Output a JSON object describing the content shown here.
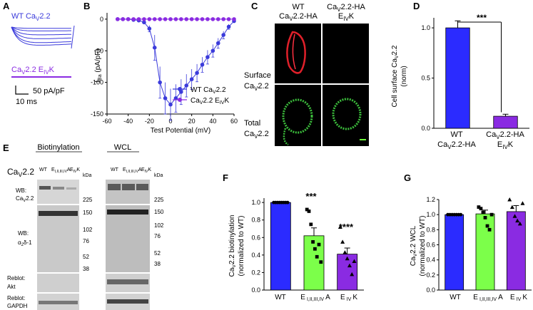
{
  "panels": {
    "A": {
      "letter": "A",
      "wt_label": "WT Ca",
      "wt_sub": "V",
      "wt_suffix": "2.2",
      "mut_label": "Ca",
      "mut_sub": "V",
      "mut_mid": "2.2 E",
      "mut_sub2": "IV",
      "mut_suffix": "K",
      "scale_y": "50 pA/pF",
      "scale_x": "10 ms",
      "colors": {
        "wt": "#3b3bdb",
        "mut": "#8a2be2"
      }
    },
    "B": {
      "letter": "B",
      "ylabel_main": "I",
      "ylabel_sub": "Ba",
      "ylabel_rest": " (pA/pF)",
      "xlabel": "Test Potential (mV)",
      "legend": [
        {
          "label": "WT Ca",
          "sub": "V",
          "rest": "2.2",
          "color": "#3b3bdb"
        },
        {
          "label": "Ca",
          "sub": "V",
          "rest": "2.2 E",
          "sub2": "IV",
          "rest2": "K",
          "color": "#8a2be2"
        }
      ]
    },
    "C": {
      "letter": "C",
      "col1_line1": "WT",
      "col1_line2": "Ca",
      "col1_sub": "V",
      "col1_rest": "2.2-HA",
      "col2_line1": "Ca",
      "col2_sub": "V",
      "col2_rest": "2.2-HA",
      "col2_line2": "E",
      "col2_sub2": "IV",
      "col2_rest2": "K",
      "row1_line1": "Surface",
      "row1_line2": "Ca",
      "row1_sub": "V",
      "row1_rest": "2.2",
      "row2_line1": "Total",
      "row2_line2": "Ca",
      "row2_sub": "V",
      "row2_rest": "2.2"
    },
    "D": {
      "letter": "D",
      "ylabel_line1": "Cell surface Ca",
      "ylabel_sub": "V",
      "ylabel_rest": "2.2",
      "ylabel_line2": "(norm)",
      "significance": "***",
      "cat1_line1": "WT",
      "cat1_line2": "Ca",
      "cat1_sub": "V",
      "cat1_rest": "2.2-HA",
      "cat2_line1": "Ca",
      "cat2_sub": "V",
      "cat2_rest": "2.2-HA",
      "cat2_line2": "E",
      "cat2_sub2": "IV",
      "cat2_rest2": "K"
    },
    "E": {
      "letter": "E",
      "biot_title": "Biotinylation",
      "wcl_title": "WCL",
      "protein": "Ca",
      "protein_sub": "V",
      "protein_rest": "2.2",
      "lane_wt": "WT",
      "lane_e": "E",
      "lane_e_sub": "I,II,III,IV",
      "lane_e_rest": "A",
      "lane_k": "E",
      "lane_k_sub": "IV",
      "lane_k_rest": "K",
      "kda": "kDa",
      "wb1_line1": "WB:",
      "wb1_line2": "Ca",
      "wb1_sub": "V",
      "wb1_rest": "2.2",
      "wb2_line1": "WB:",
      "wb2_line2": "α",
      "wb2_sub": "2",
      "wb2_rest": "δ-1",
      "reblot1_line1": "Reblot:",
      "reblot1_line2": "Akt",
      "reblot2_line1": "Reblot:",
      "reblot2_line2": "GAPDH",
      "markers_top": [
        "225"
      ],
      "markers_mid": [
        "150",
        "102",
        "76",
        "52",
        "38"
      ]
    },
    "F": {
      "letter": "F",
      "ylabel_line1": "Ca",
      "ylabel_sub": "V",
      "ylabel_rest": "2.2 biotinylation",
      "ylabel_line2": "(normalized to WT)",
      "cat1": "WT",
      "cat2": "E",
      "cat2_sub": "I,II,III,IV",
      "cat2_rest": "A",
      "cat3": "E",
      "cat3_sub": "IV",
      "cat3_rest": "K",
      "sig2": "***",
      "sig3": "****"
    },
    "G": {
      "letter": "G",
      "ylabel_line1": "Ca",
      "ylabel_sub": "V",
      "ylabel_rest": "2.2 WCL",
      "ylabel_line2": "(normalized to WT)",
      "cat1": "WT",
      "cat2": "E",
      "cat2_sub": "I,II,III,IV",
      "cat2_rest": "A",
      "cat3": "E",
      "cat3_sub": "IV",
      "cat3_rest": "K"
    }
  },
  "chart_data": [
    {
      "id": "B",
      "type": "line",
      "xlim": [
        -60,
        60
      ],
      "ylim": [
        -150,
        10
      ],
      "xticks": [
        -60,
        -40,
        -20,
        0,
        20,
        40,
        60
      ],
      "yticks": [
        -150,
        -100,
        -50,
        0
      ],
      "series": [
        {
          "name": "WT CaV2.2",
          "color": "#3b3bdb",
          "x": [
            -50,
            -45,
            -40,
            -35,
            -30,
            -25,
            -20,
            -15,
            -10,
            -5,
            0,
            5,
            10,
            15,
            20,
            25,
            30,
            35,
            40,
            45,
            50,
            55,
            60
          ],
          "y": [
            0,
            0,
            0,
            -1,
            -2,
            -5,
            -15,
            -45,
            -100,
            -125,
            -135,
            -125,
            -115,
            -105,
            -95,
            -85,
            -72,
            -60,
            -50,
            -38,
            -25,
            -12,
            -3
          ],
          "err": [
            0,
            0,
            0,
            1,
            1,
            2,
            5,
            20,
            25,
            25,
            25,
            22,
            20,
            18,
            16,
            14,
            12,
            11,
            10,
            8,
            6,
            4,
            2
          ]
        },
        {
          "name": "CaV2.2 EIVK",
          "color": "#8a2be2",
          "x": [
            -50,
            -45,
            -40,
            -35,
            -30,
            -25,
            -20,
            -15,
            -10,
            -5,
            0,
            5,
            10,
            15,
            20,
            25,
            30,
            35,
            40,
            45,
            50,
            55,
            60
          ],
          "y": [
            0,
            0,
            0,
            0,
            0,
            0,
            0,
            0,
            0,
            0,
            0,
            0,
            0,
            0,
            0,
            0,
            0,
            0,
            0,
            0,
            0,
            0,
            0
          ]
        }
      ]
    },
    {
      "id": "D",
      "type": "bar",
      "ylim": [
        0,
        1.1
      ],
      "yticks": [
        0.0,
        0.5,
        1.0
      ],
      "categories": [
        "WT CaV2.2-HA",
        "CaV2.2-HA EIVK"
      ],
      "values": [
        1.0,
        0.12
      ],
      "errors": [
        0.07,
        0.02
      ],
      "colors": [
        "#2b2bff",
        "#8a2be2"
      ]
    },
    {
      "id": "F",
      "type": "bar",
      "ylim": [
        0,
        1.05
      ],
      "yticks": [
        0.0,
        0.2,
        0.4,
        0.6,
        0.8,
        1.0
      ],
      "categories": [
        "WT",
        "E I,II,III,IV A",
        "E IV K"
      ],
      "values": [
        1.0,
        0.62,
        0.41
      ],
      "errors": [
        0.005,
        0.09,
        0.07
      ],
      "colors": [
        "#2b2bff",
        "#7cff4a",
        "#8a2be2"
      ],
      "points": [
        [
          1.0,
          1.0,
          1.0,
          1.0,
          1.0,
          1.0,
          1.0,
          1.0
        ],
        [
          0.92,
          0.9,
          0.75,
          0.55,
          0.47,
          0.38,
          0.52,
          0.32
        ],
        [
          0.72,
          0.55,
          0.43,
          0.36,
          0.28,
          0.18,
          0.33
        ]
      ],
      "markers": [
        "circle",
        "square",
        "triangle"
      ]
    },
    {
      "id": "G",
      "type": "bar",
      "ylim": [
        0,
        1.2
      ],
      "yticks": [
        0.0,
        0.2,
        0.4,
        0.6,
        0.8,
        1.0,
        1.2
      ],
      "categories": [
        "WT",
        "E I,II,III,IV A",
        "E IV K"
      ],
      "values": [
        1.0,
        1.01,
        1.04
      ],
      "errors": [
        0.005,
        0.05,
        0.08
      ],
      "colors": [
        "#2b2bff",
        "#7cff4a",
        "#8a2be2"
      ],
      "points": [
        [
          1.0,
          1.0,
          1.0,
          1.0,
          1.0,
          1.0,
          1.0
        ],
        [
          1.1,
          1.08,
          1.03,
          0.96,
          0.85,
          0.8,
          1.0
        ],
        [
          1.2,
          1.1,
          0.98,
          0.92,
          0.88,
          1.15
        ]
      ],
      "markers": [
        "circle",
        "square",
        "triangle"
      ]
    }
  ]
}
